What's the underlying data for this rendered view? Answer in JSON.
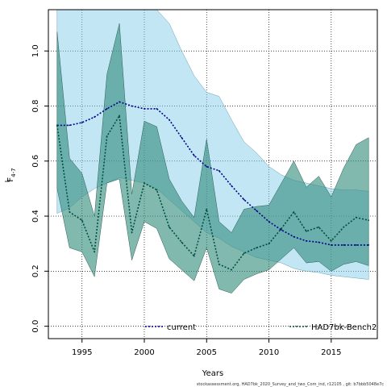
{
  "chart_data": {
    "type": "line",
    "xlabel": "Years",
    "ylabel_main": "F",
    "ylabel_sub": "4-7",
    "xlim": [
      1992.3,
      2018.7
    ],
    "ylim": [
      -0.045,
      1.15
    ],
    "xticks": [
      1995,
      2000,
      2005,
      2010,
      2015
    ],
    "yticks": [
      0.0,
      0.2,
      0.4,
      0.6,
      0.8,
      1.0
    ],
    "ytick_labels": [
      "0.0",
      "0.2",
      "0.4",
      "0.6",
      "0.8",
      "1.0"
    ],
    "grid": true,
    "legend_position": "bottom",
    "caption": "stockassessment.org, HAD7bk_2020_Survey_and_two_Com_ind, r12105 , git: b7bbb5048e7c",
    "series": [
      {
        "name": "current",
        "color": "#00008b",
        "band_color": "#87ceeb",
        "x": [
          1993,
          1994,
          1995,
          1996,
          1997,
          1998,
          1999,
          2000,
          2001,
          2002,
          2003,
          2004,
          2005,
          2006,
          2007,
          2008,
          2009,
          2010,
          2011,
          2012,
          2013,
          2014,
          2015,
          2016,
          2017,
          2018
        ],
        "values": [
          0.73,
          0.73,
          0.74,
          0.76,
          0.79,
          0.815,
          0.8,
          0.79,
          0.79,
          0.75,
          0.685,
          0.62,
          0.58,
          0.565,
          0.51,
          0.46,
          0.42,
          0.38,
          0.35,
          0.325,
          0.31,
          0.305,
          0.295,
          0.295,
          0.295,
          0.295
        ],
        "lower": [
          0.41,
          0.43,
          0.47,
          0.5,
          0.52,
          0.54,
          0.53,
          0.52,
          0.5,
          0.46,
          0.42,
          0.38,
          0.34,
          0.32,
          0.29,
          0.27,
          0.25,
          0.24,
          0.23,
          0.21,
          0.2,
          0.195,
          0.185,
          0.18,
          0.175,
          0.17
        ],
        "upper": [
          1.15,
          1.15,
          1.15,
          1.15,
          1.15,
          1.15,
          1.15,
          1.15,
          1.15,
          1.1,
          1.0,
          0.91,
          0.85,
          0.835,
          0.75,
          0.67,
          0.63,
          0.58,
          0.55,
          0.53,
          0.52,
          0.51,
          0.5,
          0.495,
          0.495,
          0.49
        ]
      },
      {
        "name": "HAD7bk-Bench2",
        "color": "#004d40",
        "band_color": "#2e8b7a",
        "x": [
          1993,
          1994,
          1995,
          1996,
          1997,
          1998,
          1999,
          2000,
          2001,
          2002,
          2003,
          2004,
          2005,
          2006,
          2007,
          2008,
          2009,
          2010,
          2011,
          2012,
          2013,
          2014,
          2015,
          2016,
          2017,
          2018
        ],
        "values": [
          0.73,
          0.415,
          0.385,
          0.27,
          0.69,
          0.765,
          0.34,
          0.52,
          0.495,
          0.36,
          0.305,
          0.255,
          0.425,
          0.225,
          0.205,
          0.265,
          0.285,
          0.3,
          0.355,
          0.415,
          0.345,
          0.36,
          0.31,
          0.36,
          0.395,
          0.385
        ],
        "lower": [
          0.5,
          0.285,
          0.27,
          0.18,
          0.52,
          0.535,
          0.24,
          0.38,
          0.355,
          0.245,
          0.205,
          0.165,
          0.285,
          0.135,
          0.12,
          0.17,
          0.19,
          0.205,
          0.245,
          0.285,
          0.23,
          0.235,
          0.2,
          0.225,
          0.235,
          0.22
        ],
        "upper": [
          1.07,
          0.61,
          0.555,
          0.4,
          0.915,
          1.1,
          0.48,
          0.745,
          0.725,
          0.535,
          0.455,
          0.395,
          0.68,
          0.38,
          0.34,
          0.425,
          0.435,
          0.44,
          0.52,
          0.6,
          0.505,
          0.545,
          0.47,
          0.575,
          0.66,
          0.685
        ]
      }
    ]
  }
}
